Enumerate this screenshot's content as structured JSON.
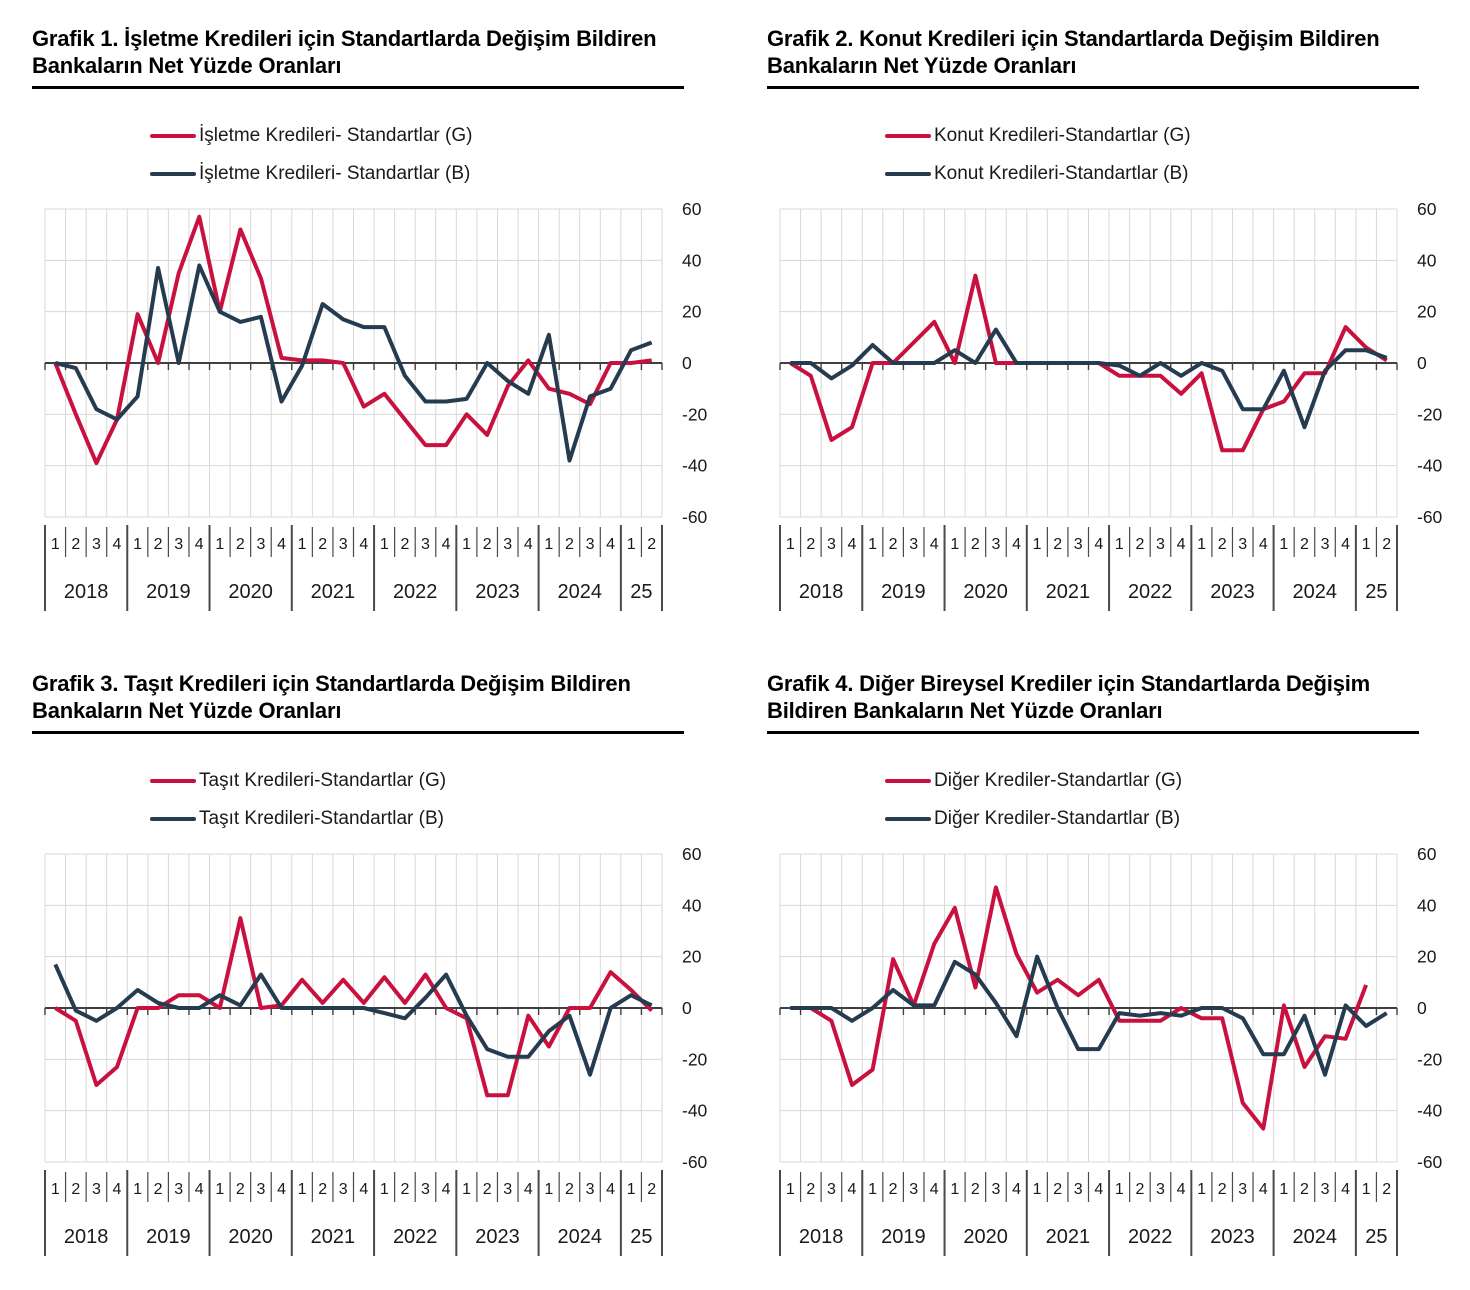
{
  "colors": {
    "series_g": "#C9113F",
    "series_b": "#253B50",
    "gridline": "#D8D8D8",
    "axis_line": "#3F3F3F",
    "table_line": "#4A4A4A",
    "label_text": "#1A1A1A",
    "title_text": "#000000"
  },
  "y_axis": {
    "ticks": [
      60,
      40,
      20,
      0,
      -20,
      -40,
      -60
    ],
    "ylim": [
      -60,
      60
    ]
  },
  "x_axis": {
    "years": [
      {
        "label": "2018",
        "quarters": [
          "1",
          "2",
          "3",
          "4"
        ]
      },
      {
        "label": "2019",
        "quarters": [
          "1",
          "2",
          "3",
          "4"
        ]
      },
      {
        "label": "2020",
        "quarters": [
          "1",
          "2",
          "3",
          "4"
        ]
      },
      {
        "label": "2021",
        "quarters": [
          "1",
          "2",
          "3",
          "4"
        ]
      },
      {
        "label": "2022",
        "quarters": [
          "1",
          "2",
          "3",
          "4"
        ]
      },
      {
        "label": "2023",
        "quarters": [
          "1",
          "2",
          "3",
          "4"
        ]
      },
      {
        "label": "2024",
        "quarters": [
          "1",
          "2",
          "3",
          "4"
        ]
      },
      {
        "label": "25",
        "quarters": [
          "1",
          "2"
        ]
      }
    ]
  },
  "charts": [
    {
      "name": "grafik-1",
      "title": "Grafik 1. İşletme Kredileri için Standartlarda Değişim Bildiren Bankaların Net Yüzde Oranları",
      "legend": [
        {
          "label": "İşletme Kredileri- Standartlar (G)",
          "color_key": "series_g"
        },
        {
          "label": "İşletme Kredileri- Standartlar (B)",
          "color_key": "series_b"
        }
      ],
      "chart_data": {
        "type": "line",
        "categories": [
          "2018Q1",
          "2018Q2",
          "2018Q3",
          "2018Q4",
          "2019Q1",
          "2019Q2",
          "2019Q3",
          "2019Q4",
          "2020Q1",
          "2020Q2",
          "2020Q3",
          "2020Q4",
          "2021Q1",
          "2021Q2",
          "2021Q3",
          "2021Q4",
          "2022Q1",
          "2022Q2",
          "2022Q3",
          "2022Q4",
          "2023Q1",
          "2023Q2",
          "2023Q3",
          "2023Q4",
          "2024Q1",
          "2024Q2",
          "2024Q3",
          "2024Q4",
          "2025Q1",
          "2025Q2"
        ],
        "ylim": [
          -60,
          60
        ],
        "grid": true,
        "legend_position": "top",
        "series": [
          {
            "name": "İşletme Kredileri- Standartlar (G)",
            "color_key": "series_g",
            "values": [
              0,
              -20,
              -39,
              -22,
              19,
              0,
              35,
              57,
              20,
              52,
              33,
              2,
              1,
              1,
              0,
              -17,
              -12,
              -22,
              -32,
              -32,
              -20,
              -28,
              -9,
              1,
              -10,
              -12,
              -16,
              0,
              0,
              1
            ]
          },
          {
            "name": "İşletme Kredileri- Standartlar (B)",
            "color_key": "series_b",
            "values": [
              0,
              -2,
              -18,
              -22,
              -13,
              37,
              0,
              38,
              20,
              16,
              18,
              -15,
              -1,
              23,
              17,
              14,
              14,
              -5,
              -15,
              -15,
              -14,
              0,
              -7,
              -12,
              11,
              -38,
              -13,
              -10,
              5,
              8
            ]
          }
        ]
      }
    },
    {
      "name": "grafik-2",
      "title": "Grafik 2. Konut Kredileri için Standartlarda Değişim Bildiren Bankaların Net Yüzde Oranları",
      "legend": [
        {
          "label": "Konut Kredileri-Standartlar (G)",
          "color_key": "series_g"
        },
        {
          "label": "Konut Kredileri-Standartlar (B)",
          "color_key": "series_b"
        }
      ],
      "chart_data": {
        "type": "line",
        "categories": [
          "2018Q1",
          "2018Q2",
          "2018Q3",
          "2018Q4",
          "2019Q1",
          "2019Q2",
          "2019Q3",
          "2019Q4",
          "2020Q1",
          "2020Q2",
          "2020Q3",
          "2020Q4",
          "2021Q1",
          "2021Q2",
          "2021Q3",
          "2021Q4",
          "2022Q1",
          "2022Q2",
          "2022Q3",
          "2022Q4",
          "2023Q1",
          "2023Q2",
          "2023Q3",
          "2023Q4",
          "2024Q1",
          "2024Q2",
          "2024Q3",
          "2024Q4",
          "2025Q1",
          "2025Q2"
        ],
        "ylim": [
          -60,
          60
        ],
        "grid": true,
        "legend_position": "top",
        "series": [
          {
            "name": "Konut Kredileri-Standartlar (G)",
            "color_key": "series_g",
            "values": [
              0,
              -5,
              -30,
              -25,
              0,
              0,
              8,
              16,
              0,
              34,
              0,
              0,
              0,
              0,
              0,
              0,
              -5,
              -5,
              -5,
              -12,
              -4,
              -34,
              -34,
              -18,
              -15,
              -4,
              -4,
              14,
              6,
              1
            ]
          },
          {
            "name": "Konut Kredileri-Standartlar (B)",
            "color_key": "series_b",
            "values": [
              0,
              0,
              -6,
              -1,
              7,
              0,
              0,
              0,
              5,
              0,
              13,
              0,
              0,
              0,
              0,
              0,
              -1,
              -5,
              0,
              -5,
              0,
              -3,
              -18,
              -18,
              -3,
              -25,
              -3,
              5,
              5,
              2
            ]
          }
        ]
      }
    },
    {
      "name": "grafik-3",
      "title": "Grafik 3. Taşıt Kredileri için Standartlarda Değişim Bildiren Bankaların Net Yüzde Oranları",
      "legend": [
        {
          "label": "Taşıt Kredileri-Standartlar (G)",
          "color_key": "series_g"
        },
        {
          "label": "Taşıt Kredileri-Standartlar (B)",
          "color_key": "series_b"
        }
      ],
      "chart_data": {
        "type": "line",
        "categories": [
          "2018Q1",
          "2018Q2",
          "2018Q3",
          "2018Q4",
          "2019Q1",
          "2019Q2",
          "2019Q3",
          "2019Q4",
          "2020Q1",
          "2020Q2",
          "2020Q3",
          "2020Q4",
          "2021Q1",
          "2021Q2",
          "2021Q3",
          "2021Q4",
          "2022Q1",
          "2022Q2",
          "2022Q3",
          "2022Q4",
          "2023Q1",
          "2023Q2",
          "2023Q3",
          "2023Q4",
          "2024Q1",
          "2024Q2",
          "2024Q3",
          "2024Q4",
          "2025Q1",
          "2025Q2"
        ],
        "ylim": [
          -60,
          60
        ],
        "grid": true,
        "legend_position": "top",
        "series": [
          {
            "name": "Taşıt Kredileri-Standartlar (G)",
            "color_key": "series_g",
            "values": [
              0,
              -5,
              -30,
              -23,
              0,
              0,
              5,
              5,
              0,
              35,
              0,
              1,
              11,
              2,
              11,
              2,
              12,
              2,
              13,
              0,
              -4,
              -34,
              -34,
              -3,
              -15,
              0,
              0,
              14,
              7,
              -1
            ]
          },
          {
            "name": "Taşıt Kredileri-Standartlar (B)",
            "color_key": "series_b",
            "values": [
              17,
              -1,
              -5,
              0,
              7,
              2,
              0,
              0,
              5,
              1,
              13,
              0,
              0,
              0,
              0,
              0,
              -2,
              -4,
              4,
              13,
              -3,
              -16,
              -19,
              -19,
              -9,
              -3,
              -26,
              0,
              5,
              1
            ]
          }
        ]
      }
    },
    {
      "name": "grafik-4",
      "title": "Grafik 4. Diğer Bireysel Krediler için Standartlarda Değişim Bildiren Bankaların Net Yüzde Oranları",
      "legend": [
        {
          "label": "Diğer Krediler-Standartlar (G)",
          "color_key": "series_g"
        },
        {
          "label": "Diğer Krediler-Standartlar (B)",
          "color_key": "series_b"
        }
      ],
      "chart_data": {
        "type": "line",
        "categories": [
          "2018Q1",
          "2018Q2",
          "2018Q3",
          "2018Q4",
          "2019Q1",
          "2019Q2",
          "2019Q3",
          "2019Q4",
          "2020Q1",
          "2020Q2",
          "2020Q3",
          "2020Q4",
          "2021Q1",
          "2021Q2",
          "2021Q3",
          "2021Q4",
          "2022Q1",
          "2022Q2",
          "2022Q3",
          "2022Q4",
          "2023Q1",
          "2023Q2",
          "2023Q3",
          "2023Q4",
          "2024Q1",
          "2024Q2",
          "2024Q3",
          "2024Q4",
          "2025Q1",
          "2025Q2"
        ],
        "ylim": [
          -60,
          60
        ],
        "grid": true,
        "legend_position": "top",
        "series": [
          {
            "name": "Diğer Krediler-Standartlar (G)",
            "color_key": "series_g",
            "values": [
              0,
              0,
              -5,
              -30,
              -24,
              19,
              1,
              25,
              39,
              8,
              47,
              21,
              6,
              11,
              5,
              11,
              -5,
              -5,
              -5,
              0,
              -4,
              -4,
              -37,
              -47,
              1,
              -23,
              -11,
              -12,
              9,
              null
            ]
          },
          {
            "name": "Diğer Krediler-Standartlar (B)",
            "color_key": "series_b",
            "values": [
              0,
              0,
              0,
              -5,
              0,
              7,
              1,
              1,
              18,
              13,
              2,
              -11,
              20,
              0,
              -16,
              -16,
              -2,
              -3,
              -2,
              -3,
              0,
              0,
              -4,
              -18,
              -18,
              -3,
              -26,
              1,
              -7,
              -2
            ]
          }
        ]
      }
    }
  ]
}
